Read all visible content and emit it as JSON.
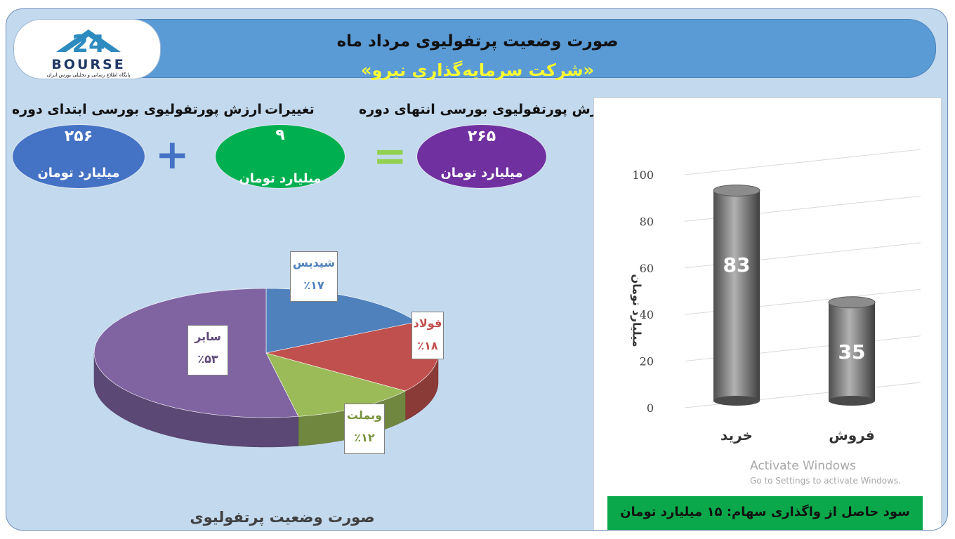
{
  "header": {
    "title_line1": "صورت وضعیت پرتفولیوی مرداد ماه",
    "title_line2": "«شرکت سرمایه‌گذاری نیرو»"
  },
  "logo": {
    "text": "BOURSE",
    "number": "24",
    "tagline": "پایگاه اطلاع رسانی و تحلیلی بورس ایران"
  },
  "summary": {
    "start": {
      "label": "ارزش پورتفولیوی بورسی ابتدای دوره",
      "value": "۲۵۶",
      "unit": "میلیارد تومان",
      "color": "#4472c4"
    },
    "change": {
      "label": "تغییرات",
      "value": "۹",
      "unit": "میلیارد تومان",
      "color": "#00b050"
    },
    "end": {
      "label": "ارزش پورتفولیوی بورسی انتهای دوره",
      "value": "۲۶۵",
      "unit": "میلیارد تومان",
      "color": "#7030a0"
    },
    "plus_sign": "+",
    "equals_sign": "="
  },
  "chart_data": [
    {
      "type": "pie",
      "title": "صورت وضعیت پرتفولیوی بورسی",
      "slices": [
        {
          "name": "شپدیس",
          "value": 17,
          "label": "٪۱۷",
          "color": "#4f81bd",
          "label_color": "#4f81bd"
        },
        {
          "name": "فولاد",
          "value": 18,
          "label": "٪۱۸",
          "color": "#c0504d",
          "label_color": "#c0504d"
        },
        {
          "name": "وبملت",
          "value": 12,
          "label": "٪۱۲",
          "color": "#9bbb59",
          "label_color": "#76923c"
        },
        {
          "name": "سایر",
          "value": 53,
          "label": "٪۵۳",
          "color": "#8064a2",
          "label_color": "#5f497a"
        }
      ]
    },
    {
      "type": "bar",
      "categories": [
        "خرید",
        "فروش"
      ],
      "values": [
        83,
        35
      ],
      "value_labels": [
        "83",
        "35"
      ],
      "ylabel": "میلیارد تومان",
      "ylim": [
        0,
        100
      ],
      "yticks": [
        "0",
        "20",
        "40",
        "60",
        "80",
        "100"
      ],
      "grid": true,
      "bar_color": "#7f7f7f"
    }
  ],
  "profit_box": "سود حاصل از واگذاری سهام:  ۱۵ میلیارد تومان",
  "watermark": {
    "line1": "Activate Windows",
    "line2": "Go to Settings to activate Windows."
  }
}
